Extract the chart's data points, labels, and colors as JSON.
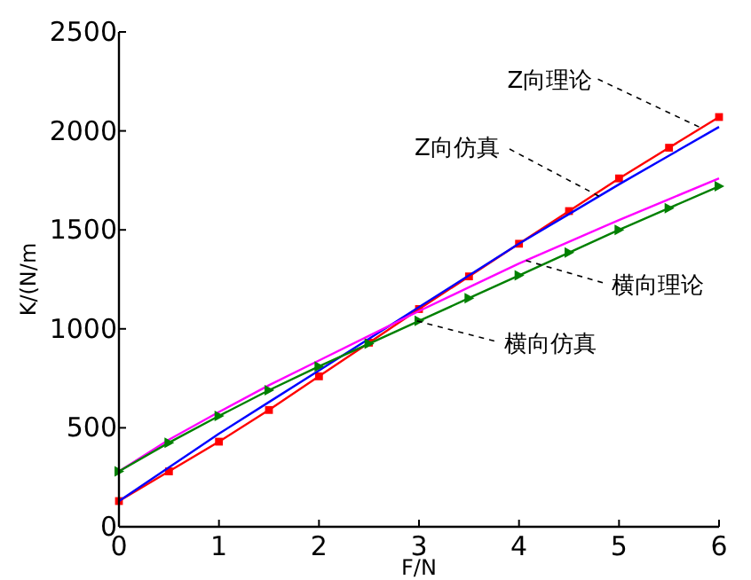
{
  "chart_data": {
    "type": "line",
    "xlabel": "F/N",
    "ylabel": "K/(N/m",
    "xlim": [
      0,
      6
    ],
    "ylim": [
      0,
      2500
    ],
    "xticks": [
      0,
      1,
      2,
      3,
      4,
      5,
      6
    ],
    "yticks": [
      0,
      500,
      1000,
      1500,
      2000,
      2500
    ],
    "grid": false,
    "x": [
      0,
      0.5,
      1,
      1.5,
      2,
      2.5,
      3,
      3.5,
      4,
      4.5,
      5,
      5.5,
      6
    ],
    "series": [
      {
        "color": "#ff0000",
        "marker": "square",
        "values": [
          130,
          280,
          430,
          590,
          760,
          930,
          1100,
          1265,
          1430,
          1595,
          1760,
          1915,
          2070
        ]
      },
      {
        "color": "#0000ff",
        "marker": "none",
        "values": [
          130,
          300,
          470,
          630,
          790,
          950,
          1110,
          1270,
          1430,
          1580,
          1730,
          1875,
          2020
        ]
      },
      {
        "color": "#ff00ff",
        "marker": "none",
        "values": [
          280,
          440,
          580,
          715,
          840,
          965,
          1090,
          1210,
          1330,
          1440,
          1550,
          1655,
          1760
        ]
      },
      {
        "color": "#008000",
        "marker": "triangle",
        "values": [
          280,
          425,
          560,
          690,
          810,
          925,
          1040,
          1155,
          1270,
          1385,
          1500,
          1610,
          1720
        ]
      }
    ],
    "annotations": [
      {
        "text": "Z向理论",
        "x": 5.8,
        "y": 2020
      },
      {
        "text": "Z向仿真",
        "x": 4.8,
        "y": 1670
      },
      {
        "text": "横向理论",
        "x": 4.07,
        "y": 1345
      },
      {
        "text": "横向仿真",
        "x": 2.98,
        "y": 1040
      }
    ]
  }
}
